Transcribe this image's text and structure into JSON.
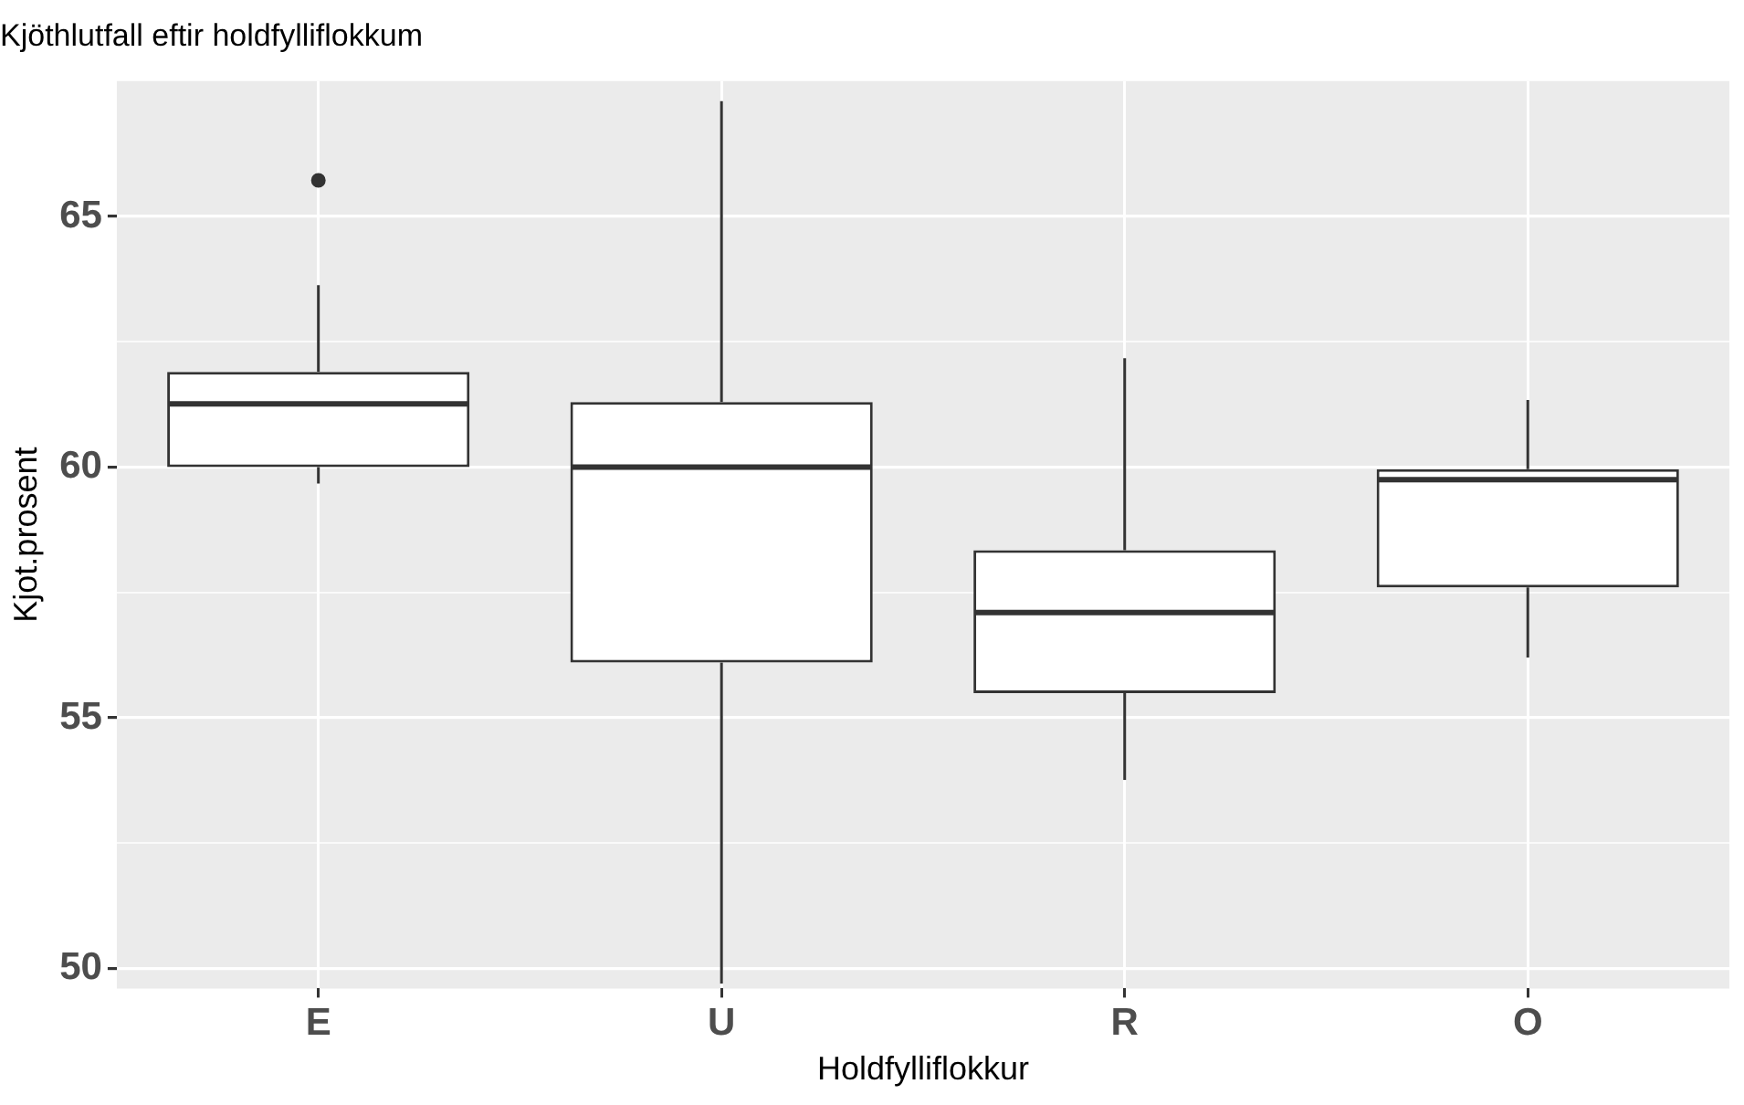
{
  "chart_data": {
    "type": "box",
    "title": "Kjöthlutfall eftir holdfylliflokkum",
    "xlabel": "Holdfylliflokkur",
    "ylabel": "Kjot.prosent",
    "categories": [
      "E",
      "U",
      "R",
      "O"
    ],
    "boxes": [
      {
        "low": 59.67,
        "q1": 60.0,
        "median": 61.26,
        "q3": 61.9,
        "high": 63.63,
        "outliers": [
          65.72
        ]
      },
      {
        "low": 49.7,
        "q1": 56.1,
        "median": 60.0,
        "q3": 61.3,
        "high": 67.3
      },
      {
        "low": 53.76,
        "q1": 55.49,
        "median": 57.1,
        "q3": 58.34,
        "high": 62.17
      },
      {
        "low": 56.2,
        "q1": 57.6,
        "median": 59.75,
        "q3": 59.96,
        "high": 61.34
      }
    ],
    "color": "#333333",
    "ylim": [
      49.6,
      67.7
    ],
    "yticks": [
      50,
      {
        "value": 52.5,
        "label": null
      },
      55,
      {
        "value": 57.5,
        "label": null
      },
      60,
      {
        "value": 62.5,
        "label": null
      },
      65
    ],
    "grid": true,
    "legend": false
  }
}
